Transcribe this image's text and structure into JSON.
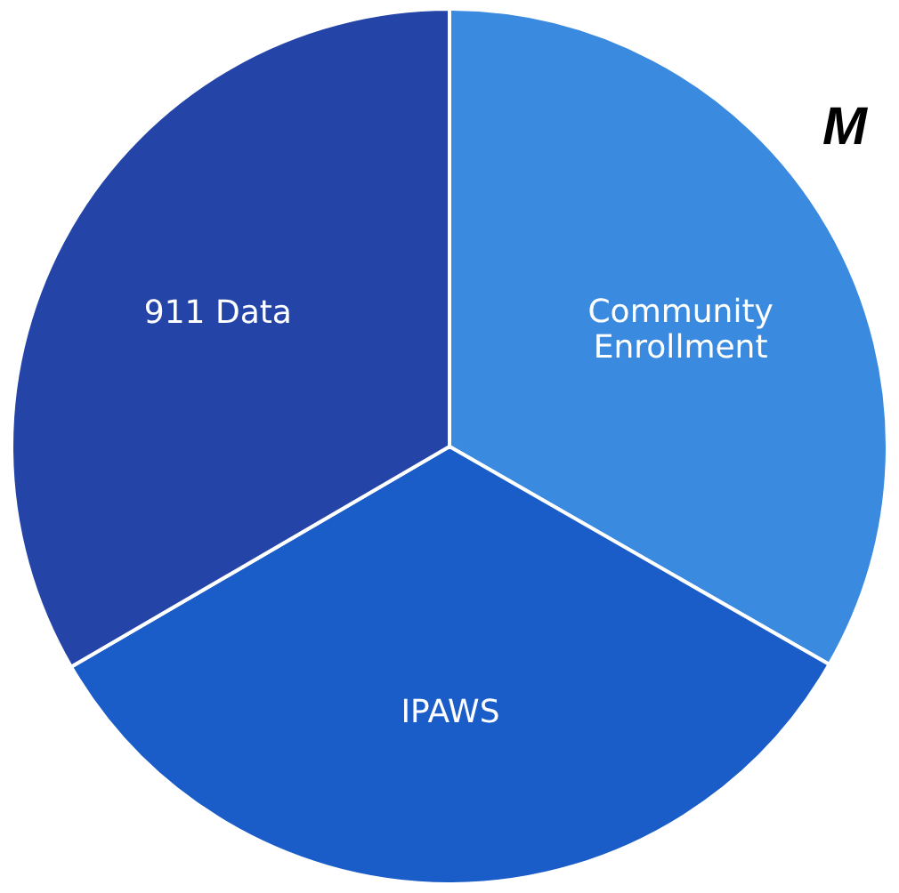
{
  "chart_data": {
    "type": "pie",
    "categories": [
      "Community Enrollment",
      "IPAWS",
      "911 Data"
    ],
    "values": [
      33.3,
      33.3,
      33.4
    ],
    "colors": [
      "#3a8ae0",
      "#1a5cc8",
      "#2444a8"
    ],
    "annotations": [
      "M"
    ]
  }
}
